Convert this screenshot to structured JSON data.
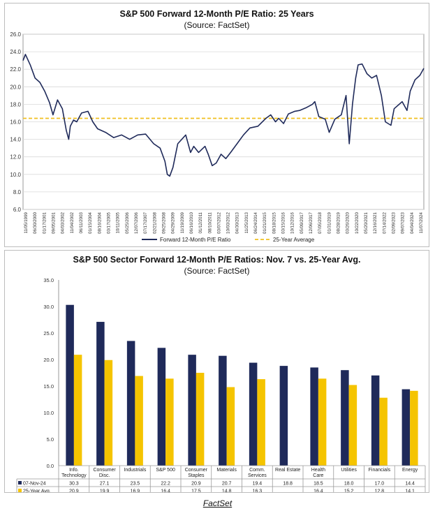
{
  "caption": "FactSet",
  "colors": {
    "navy": "#1f2a5a",
    "gold": "#f5c400",
    "avg_line": "#f0c020",
    "grid": "#d9d9d9"
  },
  "chart_data": [
    {
      "type": "line",
      "title": "S&P 500 Forward 12-Month P/E Ratio: 25 Years",
      "subtitle": "(Source: FactSet)",
      "ylim": [
        6.0,
        26.0
      ],
      "yticks": [
        "26.0",
        "24.0",
        "22.0",
        "20.0",
        "18.0",
        "16.0",
        "14.0",
        "12.0",
        "10.0",
        "8.0",
        "6.0"
      ],
      "x_tick_labels": [
        "11/05/1999",
        "06/30/2000",
        "01/17/2001",
        "09/05/2001",
        "04/03/2002",
        "11/04/2002",
        "06/11/2003",
        "01/15/2004",
        "08/16/2004",
        "03/17/2005",
        "10/11/2005",
        "05/25/2006",
        "12/07/2006",
        "07/17/2007",
        "02/21/2008",
        "09/25/2008",
        "04/29/2009",
        "11/19/2009",
        "06/16/2010",
        "01/12/2011",
        "08/10/2011",
        "03/07/2012",
        "10/03/2012",
        "04/30/2013",
        "11/25/2013",
        "06/24/2014",
        "01/21/2015",
        "08/18/2015",
        "03/15/2016",
        "10/12/2016",
        "05/09/2017",
        "12/06/2017",
        "07/05/2018",
        "01/31/2019",
        "08/28/2019",
        "03/26/2020",
        "10/22/2020",
        "05/20/2021",
        "12/16/2021",
        "07/14/2022",
        "02/09/2023",
        "09/07/2023",
        "04/04/2024",
        "11/07/2024"
      ],
      "series": [
        {
          "name": "Forward 12-Month P/E Ratio",
          "x": [
            1999.85,
            2000.0,
            2000.3,
            2000.6,
            2000.9,
            2001.2,
            2001.5,
            2001.72,
            2002.0,
            2002.3,
            2002.55,
            2002.7,
            2002.8,
            2003.0,
            2003.2,
            2003.5,
            2003.9,
            2004.2,
            2004.5,
            2005.0,
            2005.5,
            2006.0,
            2006.5,
            2007.0,
            2007.5,
            2008.0,
            2008.4,
            2008.7,
            2008.85,
            2009.0,
            2009.2,
            2009.5,
            2010.0,
            2010.3,
            2010.5,
            2010.8,
            2011.2,
            2011.4,
            2011.65,
            2011.9,
            2012.2,
            2012.5,
            2012.8,
            2013.2,
            2013.6,
            2014.0,
            2014.5,
            2015.0,
            2015.3,
            2015.6,
            2015.8,
            2016.1,
            2016.4,
            2016.8,
            2017.1,
            2017.5,
            2017.9,
            2018.05,
            2018.3,
            2018.7,
            2018.95,
            2019.3,
            2019.7,
            2020.0,
            2020.2,
            2020.4,
            2020.6,
            2020.75,
            2021.0,
            2021.3,
            2021.6,
            2021.9,
            2022.2,
            2022.45,
            2022.8,
            2023.0,
            2023.5,
            2023.8,
            2024.0,
            2024.3,
            2024.6,
            2024.85
          ],
          "y": [
            23.0,
            23.7,
            22.5,
            21.0,
            20.5,
            19.5,
            18.2,
            16.8,
            18.5,
            17.5,
            15.0,
            14.0,
            15.5,
            16.2,
            16.0,
            17.0,
            17.2,
            16.0,
            15.2,
            14.8,
            14.2,
            14.5,
            14.0,
            14.5,
            14.6,
            13.5,
            13.0,
            11.5,
            10.0,
            9.8,
            10.8,
            13.5,
            14.5,
            12.5,
            13.2,
            12.5,
            13.2,
            12.3,
            11.0,
            11.3,
            12.3,
            11.8,
            12.5,
            13.5,
            14.5,
            15.3,
            15.5,
            16.4,
            16.8,
            16.0,
            16.4,
            15.8,
            16.9,
            17.2,
            17.3,
            17.6,
            18.0,
            18.3,
            16.6,
            16.3,
            14.8,
            16.3,
            16.8,
            19.0,
            13.5,
            18.0,
            21.0,
            22.5,
            22.6,
            21.5,
            21.0,
            21.3,
            19.0,
            16.0,
            15.6,
            17.5,
            18.3,
            17.3,
            19.5,
            20.8,
            21.3,
            22.1
          ]
        },
        {
          "name": "25-Year Average",
          "value": 16.4
        }
      ],
      "legend_position": "bottom"
    },
    {
      "type": "bar",
      "title": "S&P 500 Sector Forward 12-Month P/E Ratios: Nov. 7 vs. 25-Year Avg.",
      "subtitle": "(Source: FactSet)",
      "ylim": [
        0.0,
        35.0
      ],
      "yticks": [
        "35.0",
        "30.0",
        "25.0",
        "20.0",
        "15.0",
        "10.0",
        "5.0",
        "0.0"
      ],
      "categories": [
        [
          "Info.",
          "Technology"
        ],
        [
          "Consumer",
          "Disc."
        ],
        [
          "Industrials"
        ],
        [
          "S&P 500"
        ],
        [
          "Consumer",
          "Staples"
        ],
        [
          "Materials"
        ],
        [
          "Comm.",
          "Services"
        ],
        [
          "Real Estate"
        ],
        [
          "Health",
          "Care"
        ],
        [
          "Utilities"
        ],
        [
          "Financials"
        ],
        [
          "Energy"
        ]
      ],
      "series": [
        {
          "name": "07-Nov-24",
          "values": [
            30.3,
            27.1,
            23.5,
            22.2,
            20.9,
            20.7,
            19.4,
            18.8,
            18.5,
            18.0,
            17.0,
            14.4
          ],
          "labels": [
            "30.3",
            "27.1",
            "23.5",
            "22.2",
            "20.9",
            "20.7",
            "19.4",
            "18.8",
            "18.5",
            "18.0",
            "17.0",
            "14.4"
          ]
        },
        {
          "name": "25-Year Avg.",
          "values": [
            20.9,
            19.9,
            16.9,
            16.4,
            17.5,
            14.8,
            16.3,
            null,
            16.4,
            15.2,
            12.8,
            14.1
          ],
          "labels": [
            "20.9",
            "19.9",
            "16.9",
            "16.4",
            "17.5",
            "14.8",
            "16.3",
            "",
            "16.4",
            "15.2",
            "12.8",
            "14.1"
          ]
        }
      ]
    }
  ]
}
